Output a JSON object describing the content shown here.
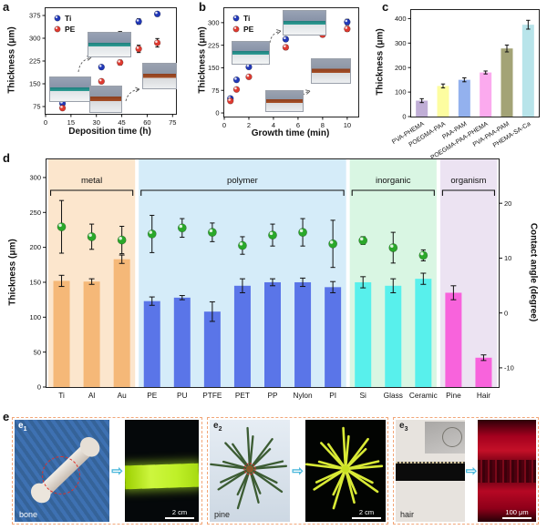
{
  "panels": {
    "a": {
      "label": "a",
      "xlabel": "Deposition time (h)",
      "ylabel": "Thickness (μm)"
    },
    "b": {
      "label": "b",
      "xlabel": "Growth time (min)",
      "ylabel": "Thickness (μm)"
    },
    "c": {
      "label": "c",
      "ylabel": "Thickness (μm)"
    },
    "d": {
      "label": "d",
      "ylabel_left": "Thickness (μm)",
      "ylabel_right": "Contact angle (degree)"
    },
    "e": {
      "label": "e"
    }
  },
  "chart_data": [
    {
      "panel": "a",
      "type": "scatter",
      "xlabel": "Deposition time (h)",
      "ylabel": "Thickness (μm)",
      "xlim": [
        0,
        77
      ],
      "ylim": [
        51,
        399
      ],
      "xticks": [
        0,
        15,
        30,
        45,
        60,
        75
      ],
      "yticks": [
        75,
        150,
        225,
        300,
        375
      ],
      "series": [
        {
          "name": "Ti",
          "color": "#2138b8",
          "x": [
            10,
            22,
            33,
            44,
            55,
            66
          ],
          "y": [
            85,
            150,
            205,
            310,
            355,
            380
          ],
          "yerr": [
            5,
            5,
            6,
            12,
            9,
            7
          ]
        },
        {
          "name": "PE",
          "color": "#df3a30",
          "x": [
            10,
            22,
            33,
            44,
            55,
            66
          ],
          "y": [
            70,
            125,
            158,
            220,
            265,
            285
          ],
          "yerr": [
            5,
            5,
            6,
            8,
            12,
            14
          ]
        }
      ]
    },
    {
      "panel": "b",
      "type": "scatter",
      "xlabel": "Growth time (min)",
      "ylabel": "Thickness (μm)",
      "xlim": [
        0,
        10.9
      ],
      "ylim": [
        -12,
        348
      ],
      "xticks": [
        0,
        2,
        4,
        6,
        8,
        10
      ],
      "yticks": [
        0,
        75,
        150,
        225,
        300
      ],
      "series": [
        {
          "name": "Ti",
          "color": "#2138b8",
          "x": [
            0.5,
            1,
            2,
            3,
            5,
            8,
            10
          ],
          "y": [
            48,
            110,
            153,
            190,
            245,
            282,
            302
          ],
          "yerr": [
            4,
            5,
            5,
            6,
            7,
            7,
            9
          ]
        },
        {
          "name": "PE",
          "color": "#df3a30",
          "x": [
            0.5,
            1,
            2,
            3,
            5,
            8,
            10
          ],
          "y": [
            40,
            78,
            120,
            171,
            218,
            260,
            279
          ],
          "yerr": [
            4,
            4,
            5,
            6,
            7,
            7,
            8
          ]
        }
      ]
    },
    {
      "panel": "c",
      "type": "bar",
      "ylabel": "Thickness (μm)",
      "ylim": [
        0,
        435
      ],
      "yticks": [
        0,
        100,
        200,
        300,
        400
      ],
      "categories": [
        "PVA-PHEMA",
        "POEGMA-PAA",
        "PAA-PAM",
        "POEGMA-PAA-PHEMA",
        "PVA-PAA-PAM",
        "PHEMA-SA-Ca"
      ],
      "values": [
        65,
        125,
        150,
        180,
        278,
        375
      ],
      "errors": [
        8,
        8,
        8,
        6,
        14,
        18
      ],
      "colors": [
        "#c0aed6",
        "#fdfda0",
        "#93b1ee",
        "#fbaaee",
        "#a3a376",
        "#b8e4ea"
      ]
    },
    {
      "panel": "d",
      "type": "bar+scatter",
      "ylabel_left": "Thickness (μm)",
      "ylabel_right": "Contact angle (degree)",
      "ylim_left": [
        0,
        326
      ],
      "yticks_left": [
        0,
        50,
        100,
        150,
        200,
        250,
        300
      ],
      "ylim_right": [
        -13.5,
        28
      ],
      "yticks_right": [
        20,
        10,
        0,
        -10
      ],
      "categories": [
        "Ti",
        "Al",
        "Au",
        "PE",
        "PU",
        "PTFE",
        "PET",
        "PP",
        "Nylon",
        "PI",
        "Si",
        "Glass",
        "Ceramic",
        "Pine",
        "Hair"
      ],
      "thickness": [
        152,
        151,
        183,
        123,
        128,
        108,
        145,
        150,
        150,
        143,
        150,
        145,
        155,
        135,
        42
      ],
      "thickness_err": [
        8,
        4,
        6,
        6,
        3,
        14,
        10,
        5,
        6,
        8,
        8,
        10,
        8,
        10,
        4
      ],
      "contact_angle": [
        15.7,
        13.9,
        13.3,
        14.4,
        15.5,
        14.7,
        12.3,
        14.2,
        14.7,
        12.6,
        13.2,
        11.9,
        10.5,
        null,
        null
      ],
      "contact_angle_err": [
        4.8,
        2.3,
        2.5,
        3.4,
        1.7,
        1.7,
        1.6,
        2,
        2.5,
        4.3,
        0.7,
        2.8,
        1,
        null,
        null
      ],
      "marker_color": "#2aa82a",
      "groups": [
        {
          "label": "metal",
          "span": [
            0,
            2
          ],
          "bg": "#fce6cd",
          "bar": "#f5b878"
        },
        {
          "label": "polymer",
          "span": [
            3,
            9
          ],
          "bg": "#d5ecf9",
          "bar": "#5a75e8"
        },
        {
          "label": "inorganic",
          "span": [
            10,
            12
          ],
          "bg": "#d9f6e3",
          "bar": "#58f0ec"
        },
        {
          "label": "organism",
          "span": [
            13,
            14
          ],
          "bg": "#ece3f2",
          "bar": "#f863dc"
        }
      ]
    }
  ],
  "panel_e": {
    "arrow_icon": "⇨",
    "items": [
      {
        "sub_label": "e",
        "sub_index": "1",
        "specimen": "bone",
        "scale_label": "2 cm"
      },
      {
        "sub_label": "e",
        "sub_index": "2",
        "specimen": "pine",
        "scale_label": "2 cm"
      },
      {
        "sub_label": "e",
        "sub_index": "3",
        "specimen": "hair",
        "scale_label": "100 μm"
      }
    ]
  },
  "colors": {
    "axis": "#111111",
    "ti_marker": "#2138b8",
    "pe_marker": "#df3a30",
    "contact_marker": "#2aa82a",
    "dashed_box_border": "#f2a678",
    "arrow_blue": "#4cb8dc",
    "pine_needle": "#3c5c33",
    "fluor_yellow": "#d9ea35",
    "fluor_green_band": "#c4ee2e",
    "fluor_red": "#c00024"
  }
}
